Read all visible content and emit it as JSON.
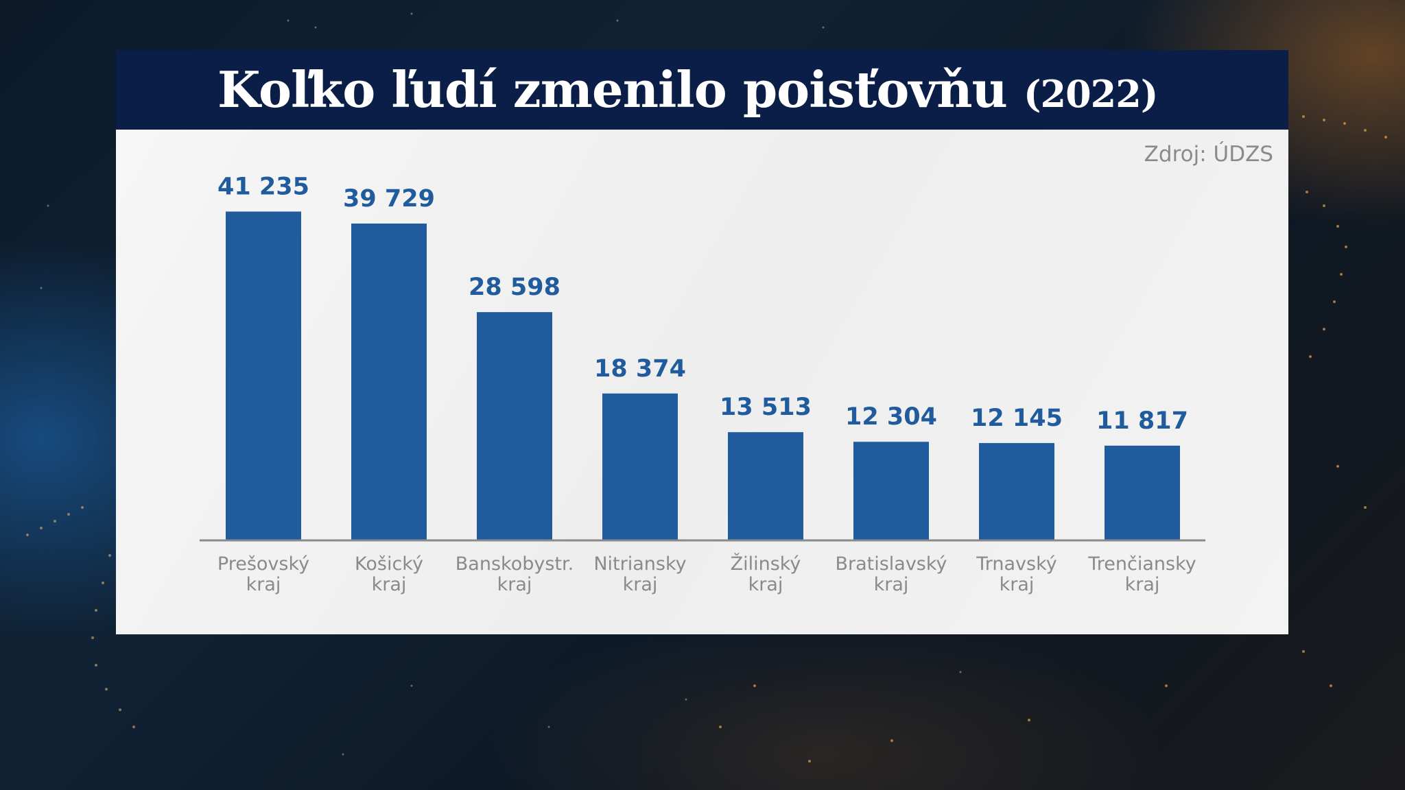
{
  "title": {
    "main": "Koľko ľudí zmenilo poisťovňu",
    "year": "(2022)"
  },
  "source": "Zdroj: ÚDZS",
  "colors": {
    "bar": "#1f5b9d",
    "value_label": "#1f5b9d",
    "category_label": "#8a8a8a",
    "title_bar": "#0b1e48",
    "baseline": "#8a8a8a"
  },
  "chart_data": {
    "type": "bar",
    "title": "Koľko ľudí zmenilo poisťovňu (2022)",
    "xlabel": "",
    "ylabel": "",
    "categories": [
      [
        "Prešovský",
        "kraj"
      ],
      [
        "Košický",
        "kraj"
      ],
      [
        "Banskobystr.",
        "kraj"
      ],
      [
        "Nitriansky",
        "kraj"
      ],
      [
        "Žilinský",
        "kraj"
      ],
      [
        "Bratislavský",
        "kraj"
      ],
      [
        "Trnavský",
        "kraj"
      ],
      [
        "Trenčiansky",
        "kraj"
      ]
    ],
    "values": [
      41235,
      39729,
      28598,
      18374,
      13513,
      12304,
      12145,
      11817
    ],
    "value_labels": [
      "41 235",
      "39 729",
      "28 598",
      "18 374",
      "13 513",
      "12 304",
      "12 145",
      "11 817"
    ],
    "ylim": [
      0,
      41235
    ],
    "grid": false,
    "legend": "none"
  }
}
